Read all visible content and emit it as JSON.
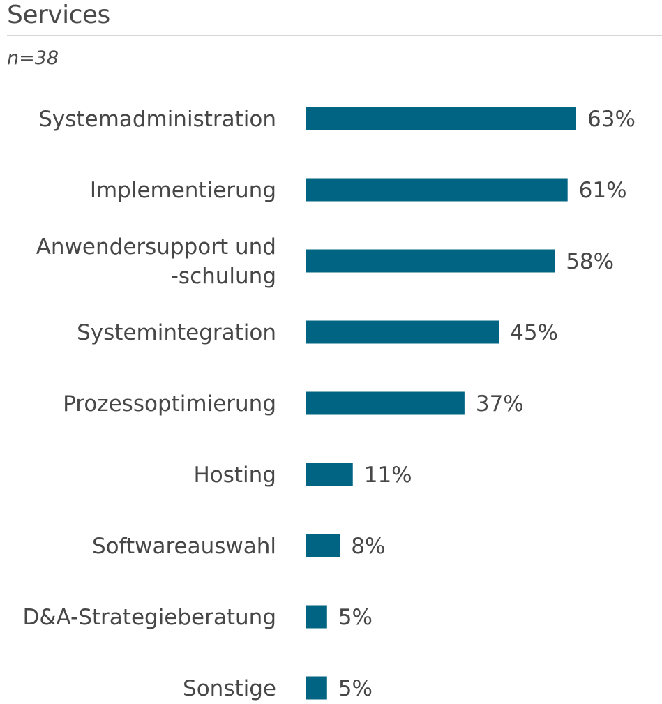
{
  "chart_data": {
    "type": "bar",
    "orientation": "horizontal",
    "title": "Services",
    "subtitle": "n=38",
    "categories": [
      [
        "Systemadministration"
      ],
      [
        "Implementierung"
      ],
      [
        "Anwendersupport und",
        "-schulung"
      ],
      [
        "Systemintegration"
      ],
      [
        "Prozessoptimierung"
      ],
      [
        "Hosting"
      ],
      [
        "Softwareauswahl"
      ],
      [
        "D&A-Strategieberatung"
      ],
      [
        "Sonstige"
      ]
    ],
    "values": [
      63,
      61,
      58,
      45,
      37,
      11,
      8,
      5,
      5
    ],
    "value_labels": [
      "63%",
      "61%",
      "58%",
      "45%",
      "37%",
      "11%",
      "8%",
      "5%",
      "5%"
    ],
    "unit": "%",
    "xlabel": "",
    "ylabel": "",
    "xlim": [
      0,
      63
    ],
    "grid": false,
    "legend": "none",
    "bar_color": "#006482"
  }
}
